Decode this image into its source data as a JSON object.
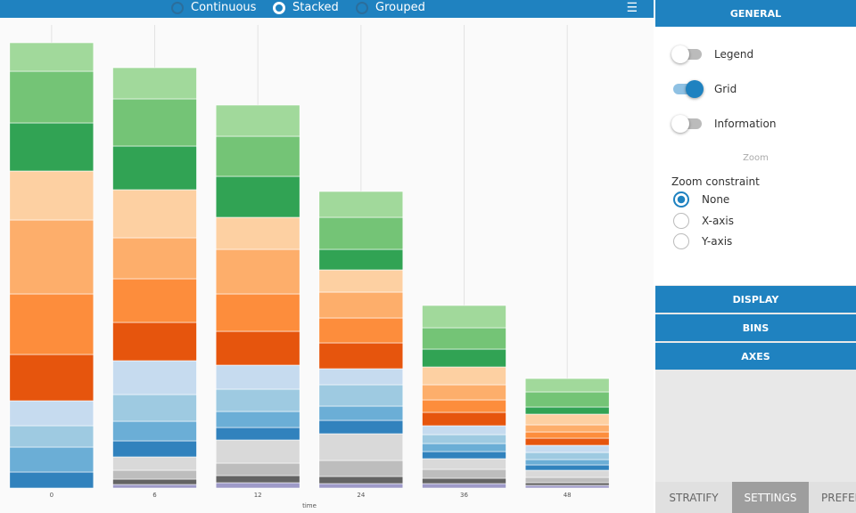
{
  "toolbar": {
    "modes": [
      {
        "label": "Continuous",
        "selected": false
      },
      {
        "label": "Stacked",
        "selected": true
      },
      {
        "label": "Grouped",
        "selected": false
      }
    ]
  },
  "chart_data": {
    "type": "stacked-bar",
    "x_label": "time",
    "categories": [
      "0",
      "6",
      "12",
      "24",
      "36",
      "48"
    ],
    "ylim": [
      0,
      520
    ],
    "grid": true,
    "series": [
      {
        "color": "#9e9ac8",
        "values": [
          0,
          4,
          6,
          5,
          5,
          3
        ]
      },
      {
        "color": "#636363",
        "values": [
          0,
          6,
          8,
          8,
          6,
          3
        ]
      },
      {
        "color": "#bdbdbd",
        "values": [
          0,
          10,
          14,
          18,
          10,
          6
        ]
      },
      {
        "color": "#d9d9d9",
        "values": [
          0,
          15,
          26,
          30,
          12,
          8
        ]
      },
      {
        "color": "#3182bd",
        "values": [
          18,
          18,
          14,
          15,
          8,
          6
        ]
      },
      {
        "color": "#6baed6",
        "values": [
          28,
          22,
          18,
          16,
          9,
          6
        ]
      },
      {
        "color": "#9ecae1",
        "values": [
          24,
          30,
          25,
          24,
          10,
          8
        ]
      },
      {
        "color": "#c6dbef",
        "values": [
          28,
          38,
          27,
          18,
          10,
          8
        ]
      },
      {
        "color": "#e6550d",
        "values": [
          52,
          43,
          38,
          29,
          15,
          8
        ]
      },
      {
        "color": "#fd8d3c",
        "values": [
          68,
          49,
          42,
          28,
          14,
          7
        ]
      },
      {
        "color": "#fdae6b",
        "values": [
          83,
          46,
          50,
          29,
          17,
          8
        ]
      },
      {
        "color": "#fdd0a2",
        "values": [
          55,
          54,
          36,
          25,
          20,
          12
        ]
      },
      {
        "color": "#31a354",
        "values": [
          54,
          49,
          46,
          23,
          20,
          8
        ]
      },
      {
        "color": "#74c476",
        "values": [
          58,
          53,
          45,
          36,
          24,
          17
        ]
      },
      {
        "color": "#a1d99b",
        "values": [
          32,
          35,
          35,
          29,
          25,
          15
        ]
      }
    ]
  },
  "settings": {
    "header": "GENERAL",
    "toggles": [
      {
        "label": "Legend",
        "on": false
      },
      {
        "label": "Grid",
        "on": true
      },
      {
        "label": "Information",
        "on": false
      }
    ],
    "zoom_heading": "Zoom",
    "zoom_label": "Zoom constraint",
    "zoom_options": [
      {
        "label": "None",
        "selected": true
      },
      {
        "label": "X-axis",
        "selected": false
      },
      {
        "label": "Y-axis",
        "selected": false
      }
    ],
    "sections": [
      "DISPLAY",
      "BINS",
      "AXES"
    ],
    "tabs": [
      {
        "label": "STRATIFY",
        "active": false
      },
      {
        "label": "SETTINGS",
        "active": true
      },
      {
        "label": "PREFERENCES",
        "active": false
      }
    ]
  }
}
